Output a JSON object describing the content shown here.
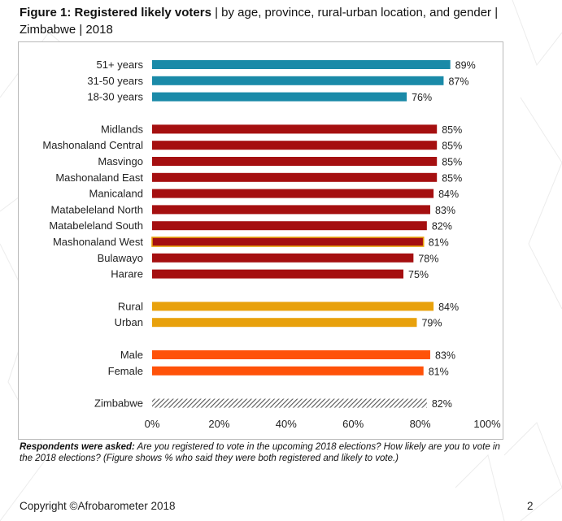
{
  "figure": {
    "title_bold": "Figure 1: Registered likely voters",
    "title_rest": " | by age, province, rural-urban location, and gender | Zimbabwe | 2018"
  },
  "note": {
    "lead": "Respondents were asked:",
    "text": " Are you registered to vote in the upcoming 2018 elections? How likely are you to vote in the 2018 elections? (Figure shows % who said they were both registered and likely to vote.)"
  },
  "footer": {
    "copyright": "Copyright ©Afrobarometer 2018",
    "page_number": "2"
  },
  "colors": {
    "age": "#1a8aa8",
    "province": "#a50f10",
    "location": "#e8a10c",
    "gender": "#ff5209",
    "national": "hatched-gray",
    "highlight_outline": "#e8a10c"
  },
  "chart_data": {
    "type": "bar",
    "orientation": "horizontal",
    "x_ticks": [
      "0%",
      "20%",
      "40%",
      "60%",
      "80%",
      "100%"
    ],
    "xlim": [
      0,
      100
    ],
    "groups": [
      {
        "name": "age",
        "color": "#1a8aa8",
        "bars": [
          {
            "label": "51+ years",
            "value": 89,
            "value_label": "89%"
          },
          {
            "label": "31-50 years",
            "value": 87,
            "value_label": "87%"
          },
          {
            "label": "18-30 years",
            "value": 76,
            "value_label": "76%"
          }
        ]
      },
      {
        "name": "province",
        "color": "#a50f10",
        "bars": [
          {
            "label": "Midlands",
            "value": 85,
            "value_label": "85%"
          },
          {
            "label": "Mashonaland Central",
            "value": 85,
            "value_label": "85%"
          },
          {
            "label": "Masvingo",
            "value": 85,
            "value_label": "85%"
          },
          {
            "label": "Mashonaland East",
            "value": 85,
            "value_label": "85%"
          },
          {
            "label": "Manicaland",
            "value": 84,
            "value_label": "84%"
          },
          {
            "label": "Matabeleland North",
            "value": 83,
            "value_label": "83%"
          },
          {
            "label": "Matabeleland South",
            "value": 82,
            "value_label": "82%"
          },
          {
            "label": "Mashonaland West",
            "value": 81,
            "value_label": "81%",
            "highlight": true
          },
          {
            "label": "Bulawayo",
            "value": 78,
            "value_label": "78%"
          },
          {
            "label": "Harare",
            "value": 75,
            "value_label": "75%"
          }
        ]
      },
      {
        "name": "location",
        "color": "#e8a10c",
        "bars": [
          {
            "label": "Rural",
            "value": 84,
            "value_label": "84%"
          },
          {
            "label": "Urban",
            "value": 79,
            "value_label": "79%"
          }
        ]
      },
      {
        "name": "gender",
        "color": "#ff5209",
        "bars": [
          {
            "label": "Male",
            "value": 83,
            "value_label": "83%"
          },
          {
            "label": "Female",
            "value": 81,
            "value_label": "81%"
          }
        ]
      },
      {
        "name": "national",
        "color": "hatched",
        "bars": [
          {
            "label": "Zimbabwe",
            "value": 82,
            "value_label": "82%"
          }
        ]
      }
    ]
  }
}
